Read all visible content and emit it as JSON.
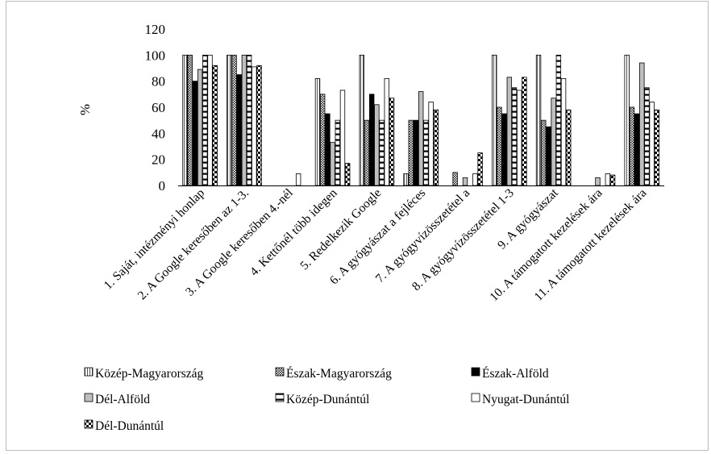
{
  "chart_data": {
    "type": "bar",
    "title": "",
    "xlabel": "",
    "ylabel": "%",
    "ylim": [
      0,
      120
    ],
    "yticks": [
      "0",
      "20",
      "40",
      "60",
      "80",
      "100",
      "120"
    ],
    "grid": false,
    "legend_position": "bottom",
    "categories": [
      "1. Saját, intézményi honlap",
      "2. A Google keresőben az 1-3.",
      "3. A Google keresőben 4.-nél",
      "4. Kettőnél több idegen",
      "5. Redelkezik Google",
      "6. A gyógyászat a fejléces",
      "7. A gyógyvízösszetétel a",
      "8. A gyógyvízösszetétel 1-3",
      "9. A gyógyászat",
      "10. A támogatott kezelések ára",
      "11. A támogatott kezelések ára"
    ],
    "series": [
      {
        "name": "Közép-Magyarország",
        "pattern": "vline",
        "values": [
          100,
          100,
          0,
          82,
          100,
          9,
          0,
          100,
          100,
          0,
          100
        ]
      },
      {
        "name": "Észak-Magyarország",
        "pattern": "check",
        "values": [
          100,
          100,
          0,
          70,
          50,
          50,
          10,
          60,
          50,
          0,
          60
        ]
      },
      {
        "name": "Észak-Alföld",
        "pattern": "solid",
        "values": [
          80,
          85,
          0,
          55,
          70,
          50,
          0,
          55,
          45,
          0,
          55
        ]
      },
      {
        "name": "Dél-Alföld",
        "pattern": "gray",
        "values": [
          89,
          100,
          0,
          33,
          62,
          72,
          6,
          83,
          67,
          6,
          94
        ]
      },
      {
        "name": "Közép-Dunántúl",
        "pattern": "hline",
        "values": [
          100,
          100,
          0,
          50,
          50,
          50,
          0,
          75,
          100,
          0,
          75
        ]
      },
      {
        "name": "Nyugat-Dunántúl",
        "pattern": "open",
        "values": [
          100,
          91,
          9,
          73,
          82,
          64,
          9,
          73,
          82,
          9,
          64
        ]
      },
      {
        "name": "Dél-Dunántúl",
        "pattern": "check2",
        "values": [
          92,
          92,
          0,
          17,
          67,
          58,
          25,
          83,
          58,
          8,
          58
        ]
      }
    ]
  }
}
